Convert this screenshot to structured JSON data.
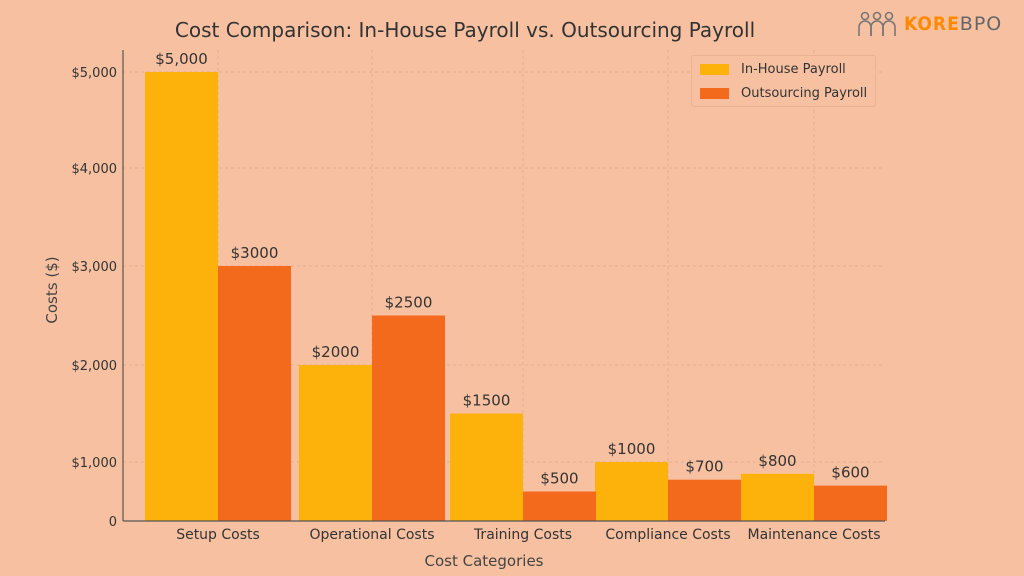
{
  "logo": {
    "brand_primary": "KORE",
    "brand_secondary": "BPO",
    "icon": "people-group-icon"
  },
  "chart_data": {
    "type": "bar",
    "title": "Cost Comparison: In-House Payroll vs. Outsourcing Payroll",
    "xlabel": "Cost Categories",
    "ylabel": "Costs ($)",
    "categories": [
      "Setup Costs",
      "Operational Costs",
      "Training Costs",
      "Compliance Costs",
      "Maintenance Costs"
    ],
    "series": [
      {
        "name": "In-House Payroll",
        "color": "#fdb10b",
        "values": [
          5000,
          2000,
          1500,
          1000,
          800
        ],
        "labels": [
          "$5,000",
          "$2000",
          "$1500",
          "$1000",
          "$800"
        ]
      },
      {
        "name": "Outsourcing Payroll",
        "color": "#f46a1c",
        "values": [
          3000,
          2500,
          500,
          700,
          600
        ],
        "labels": [
          "$3000",
          "$2500",
          "$500",
          "$700",
          "$600"
        ]
      }
    ],
    "yticks": [
      0,
      1000,
      2000,
      3000,
      4000,
      5000
    ],
    "ytick_labels": [
      "0",
      "$1,000",
      "$2,000",
      "$3,000",
      "$4,000",
      "$5,000"
    ],
    "ylim": [
      0,
      5000
    ],
    "grid": true,
    "legend": "top-right"
  }
}
